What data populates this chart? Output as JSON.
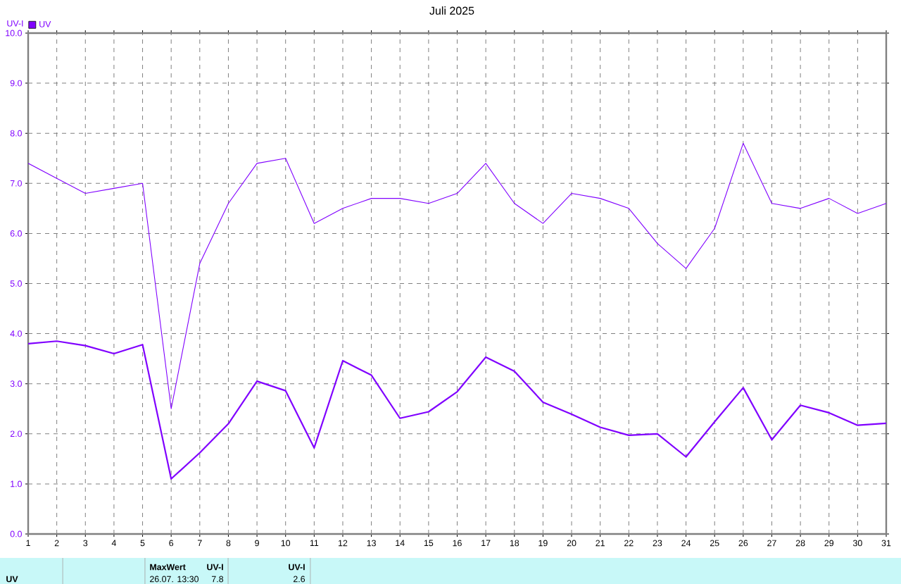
{
  "chart_data": {
    "type": "line",
    "title": "Juli 2025",
    "ylabel": "UV-I",
    "x": [
      1,
      2,
      3,
      4,
      5,
      6,
      7,
      8,
      9,
      10,
      11,
      12,
      13,
      14,
      15,
      16,
      17,
      18,
      19,
      20,
      21,
      22,
      23,
      24,
      25,
      26,
      27,
      28,
      29,
      30,
      31
    ],
    "series": [
      {
        "name": "UV",
        "color": "#8000ff",
        "values": [
          7.4,
          7.1,
          6.8,
          6.9,
          7.0,
          2.5,
          5.4,
          6.6,
          7.4,
          7.5,
          6.2,
          6.5,
          6.7,
          6.7,
          6.6,
          6.8,
          7.4,
          6.6,
          6.2,
          6.8,
          6.7,
          6.5,
          5.8,
          5.3,
          6.1,
          7.8,
          6.6,
          6.5,
          6.7,
          6.4,
          6.6
        ]
      },
      {
        "color": "#8000ff",
        "values": [
          3.8,
          3.85,
          3.76,
          3.6,
          3.78,
          1.1,
          1.62,
          2.2,
          3.05,
          2.86,
          1.72,
          3.46,
          3.17,
          2.31,
          2.44,
          2.84,
          3.53,
          3.25,
          2.63,
          2.39,
          2.13,
          1.97,
          2.0,
          1.54,
          2.24,
          2.92,
          1.88,
          2.57,
          2.42,
          2.17,
          2.21
        ]
      }
    ],
    "xlim": [
      1,
      31
    ],
    "xticks": [
      1,
      2,
      3,
      4,
      5,
      6,
      7,
      8,
      9,
      10,
      11,
      12,
      13,
      14,
      15,
      16,
      17,
      18,
      19,
      20,
      21,
      22,
      23,
      24,
      25,
      26,
      27,
      28,
      29,
      30,
      31
    ],
    "ylim": [
      0,
      10
    ],
    "yticks": [
      {
        "value": 0,
        "label": "0.0"
      },
      {
        "value": 1,
        "label": "1.0"
      },
      {
        "value": 2,
        "label": "2.0"
      },
      {
        "value": 3,
        "label": "3.0"
      },
      {
        "value": 4,
        "label": "4.0"
      },
      {
        "value": 5,
        "label": "5.0"
      },
      {
        "value": 6,
        "label": "6.0"
      },
      {
        "value": 7,
        "label": "7.0"
      },
      {
        "value": 8,
        "label": "8.0"
      },
      {
        "value": 9,
        "label": "9.0"
      },
      {
        "value": 10,
        "label": "10.0"
      }
    ],
    "grid": true,
    "legend": "top left",
    "annotations": [
      "UV",
      "MaxWert",
      "UV-I",
      "26.07.  13:30",
      "7.8",
      "UV-I",
      "2.6"
    ]
  }
}
